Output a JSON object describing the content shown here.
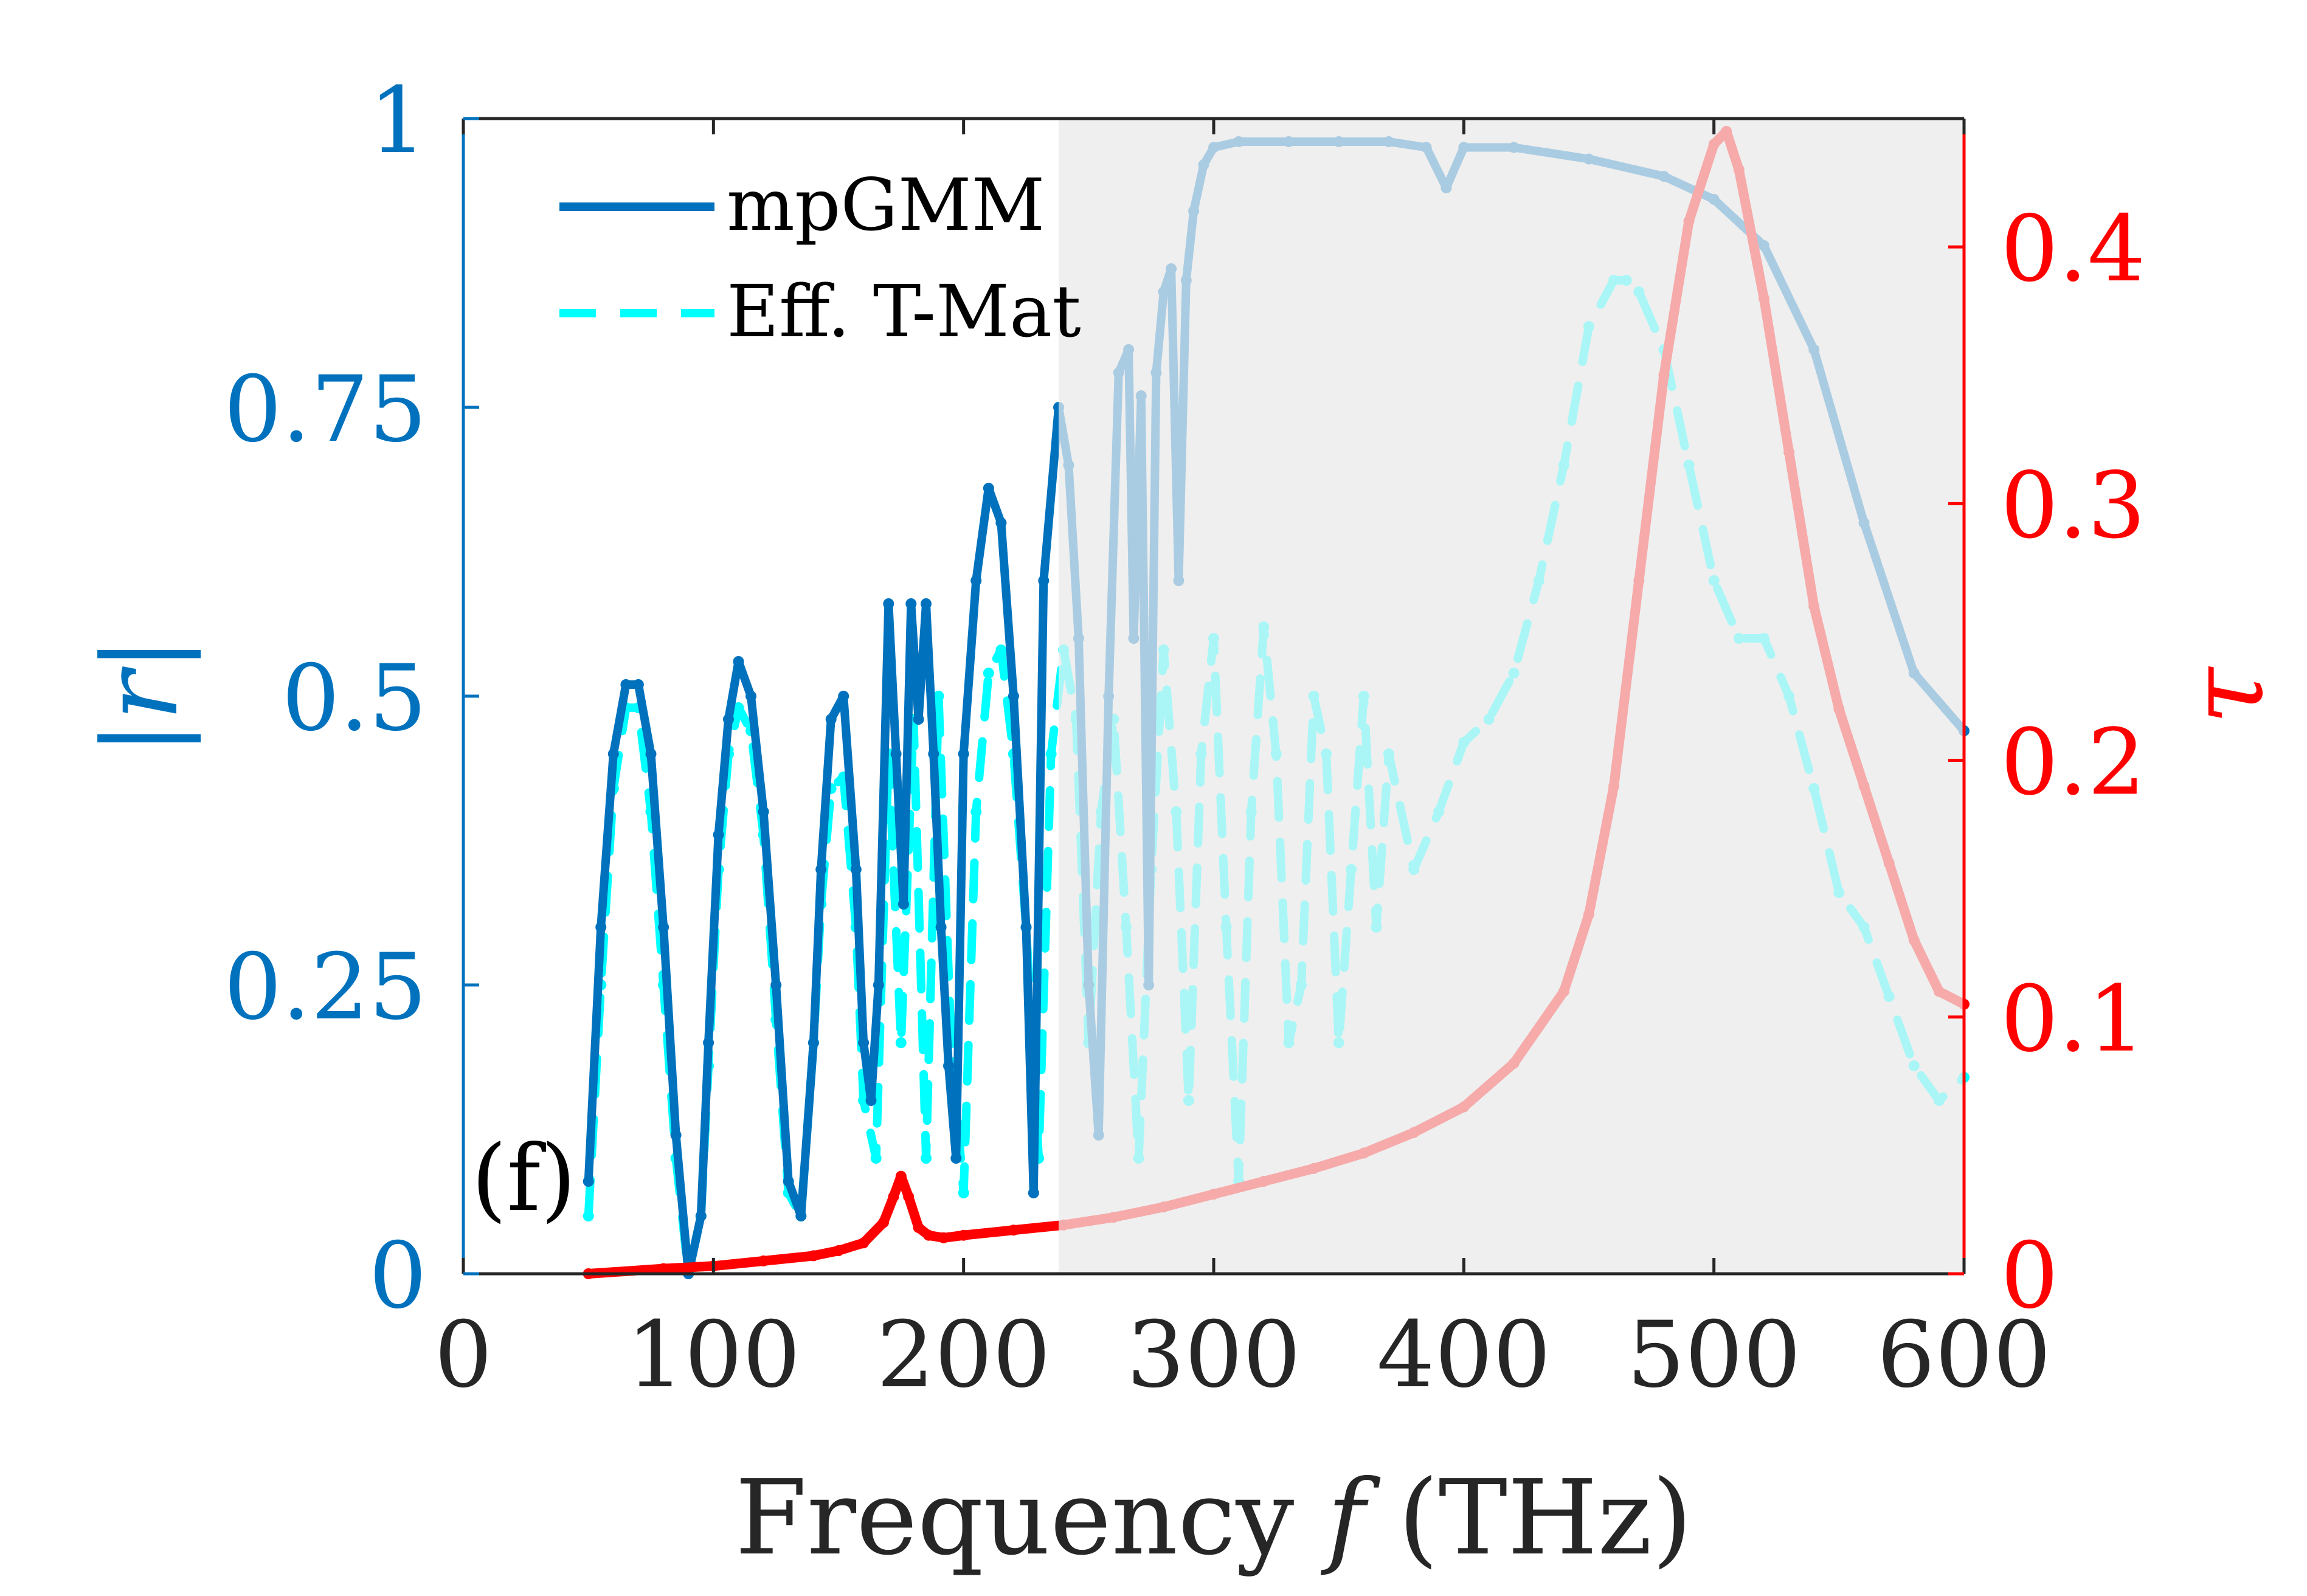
{
  "chart_data": {
    "type": "line",
    "panel_label": "(f)",
    "xlabel": "Frequency f (THz)",
    "xlabel_parts": {
      "prefix": "Frequency ",
      "var": "f",
      "suffix": " (THz)"
    },
    "ylabel_left": "|r|",
    "ylabel_right": "τ",
    "xlim": [
      0,
      600
    ],
    "ylim_left": [
      0,
      1
    ],
    "ylim_right": [
      0,
      0.45
    ],
    "xticks": [
      0,
      100,
      200,
      300,
      400,
      500,
      600
    ],
    "xtick_labels": [
      "0",
      "100",
      "200",
      "300",
      "400",
      "500",
      "600"
    ],
    "yticks_left": [
      0,
      0.25,
      0.5,
      0.75,
      1
    ],
    "ytick_labels_left": [
      "0",
      "0.25",
      "0.5",
      "0.75",
      "1"
    ],
    "yticks_right": [
      0,
      0.1,
      0.2,
      0.3,
      0.4
    ],
    "ytick_labels_right": [
      "0",
      "0.1",
      "0.2",
      "0.3",
      "0.4"
    ],
    "shaded_region": {
      "x_start": 238,
      "x_end": 600,
      "label": ""
    },
    "legend": {
      "position": "top-left",
      "entries": [
        "mpGMM",
        "Eff. T-Mat"
      ]
    },
    "colors": {
      "mpgmm": "#0072BD",
      "eff": "#00FFFF",
      "tau": "#FF0000",
      "shade": "#E8E8E8",
      "axis_left": "#0072BD",
      "axis_right": "#FF0000",
      "text": "#262626"
    },
    "series": [
      {
        "name": "mpGMM",
        "axis": "left",
        "style": "solid",
        "x": [
          50,
          55,
          60,
          65,
          70,
          75,
          80,
          85,
          90,
          95,
          98,
          102,
          106,
          110,
          115,
          120,
          125,
          130,
          135,
          140,
          143,
          147,
          152,
          157,
          160,
          163,
          166,
          170,
          173,
          176,
          179,
          182,
          185,
          188,
          191,
          194,
          197,
          200,
          205,
          210,
          215,
          220,
          225,
          228,
          232,
          238,
          242,
          246,
          250,
          254,
          258,
          262,
          266,
          268,
          271,
          274,
          277,
          280,
          283,
          286,
          289,
          292,
          296,
          300,
          310,
          330,
          350,
          370,
          385,
          393,
          400,
          420,
          450,
          480,
          500,
          520,
          540,
          560,
          580,
          600
        ],
        "y": [
          0.08,
          0.3,
          0.45,
          0.51,
          0.51,
          0.45,
          0.3,
          0.12,
          0.0,
          0.05,
          0.2,
          0.38,
          0.48,
          0.53,
          0.5,
          0.4,
          0.25,
          0.08,
          0.05,
          0.2,
          0.35,
          0.48,
          0.5,
          0.35,
          0.2,
          0.15,
          0.25,
          0.58,
          0.45,
          0.32,
          0.58,
          0.48,
          0.58,
          0.45,
          0.3,
          0.18,
          0.1,
          0.45,
          0.6,
          0.68,
          0.65,
          0.5,
          0.3,
          0.07,
          0.6,
          0.75,
          0.7,
          0.55,
          0.25,
          0.12,
          0.5,
          0.78,
          0.8,
          0.55,
          0.76,
          0.25,
          0.78,
          0.85,
          0.87,
          0.6,
          0.86,
          0.92,
          0.96,
          0.975,
          0.98,
          0.98,
          0.98,
          0.98,
          0.975,
          0.94,
          0.975,
          0.975,
          0.965,
          0.95,
          0.93,
          0.89,
          0.8,
          0.65,
          0.52,
          0.47
        ]
      },
      {
        "name": "Eff. T-Mat",
        "axis": "left",
        "style": "dashed",
        "x": [
          50,
          55,
          60,
          65,
          70,
          75,
          80,
          85,
          90,
          95,
          98,
          102,
          106,
          110,
          115,
          120,
          125,
          130,
          135,
          140,
          143,
          147,
          152,
          157,
          160,
          165,
          170,
          175,
          180,
          185,
          190,
          195,
          200,
          205,
          210,
          215,
          220,
          225,
          230,
          235,
          240,
          245,
          250,
          255,
          260,
          265,
          270,
          275,
          280,
          285,
          290,
          295,
          300,
          305,
          310,
          315,
          320,
          325,
          330,
          335,
          340,
          345,
          350,
          355,
          360,
          365,
          370,
          380,
          390,
          400,
          410,
          420,
          430,
          440,
          450,
          460,
          465,
          470,
          480,
          490,
          500,
          510,
          520,
          530,
          540,
          550,
          560,
          570,
          580,
          590,
          600
        ],
        "y": [
          0.05,
          0.25,
          0.42,
          0.49,
          0.49,
          0.4,
          0.25,
          0.1,
          0.0,
          0.05,
          0.18,
          0.35,
          0.45,
          0.49,
          0.47,
          0.38,
          0.22,
          0.07,
          0.05,
          0.2,
          0.32,
          0.42,
          0.43,
          0.3,
          0.15,
          0.1,
          0.45,
          0.2,
          0.48,
          0.1,
          0.5,
          0.2,
          0.07,
          0.4,
          0.52,
          0.54,
          0.45,
          0.3,
          0.1,
          0.45,
          0.54,
          0.48,
          0.2,
          0.4,
          0.48,
          0.3,
          0.1,
          0.35,
          0.54,
          0.4,
          0.15,
          0.45,
          0.55,
          0.3,
          0.08,
          0.4,
          0.56,
          0.45,
          0.2,
          0.25,
          0.5,
          0.45,
          0.2,
          0.35,
          0.5,
          0.3,
          0.45,
          0.35,
          0.4,
          0.46,
          0.48,
          0.52,
          0.6,
          0.7,
          0.82,
          0.86,
          0.86,
          0.85,
          0.8,
          0.7,
          0.6,
          0.55,
          0.55,
          0.5,
          0.42,
          0.33,
          0.3,
          0.24,
          0.18,
          0.15,
          0.17
        ]
      },
      {
        "name": "τ",
        "axis": "right",
        "style": "solid",
        "x": [
          50,
          80,
          100,
          120,
          140,
          150,
          160,
          168,
          172,
          175,
          178,
          182,
          186,
          192,
          200,
          220,
          240,
          260,
          280,
          300,
          320,
          340,
          360,
          380,
          400,
          420,
          440,
          450,
          460,
          470,
          480,
          490,
          500,
          505,
          510,
          520,
          530,
          540,
          550,
          560,
          570,
          580,
          590,
          600
        ],
        "y": [
          0.0,
          0.002,
          0.003,
          0.005,
          0.007,
          0.009,
          0.012,
          0.02,
          0.03,
          0.038,
          0.03,
          0.018,
          0.015,
          0.014,
          0.015,
          0.017,
          0.019,
          0.022,
          0.026,
          0.031,
          0.036,
          0.041,
          0.047,
          0.055,
          0.065,
          0.082,
          0.11,
          0.14,
          0.19,
          0.27,
          0.35,
          0.41,
          0.44,
          0.445,
          0.43,
          0.38,
          0.32,
          0.26,
          0.22,
          0.19,
          0.16,
          0.13,
          0.11,
          0.105
        ]
      }
    ]
  }
}
